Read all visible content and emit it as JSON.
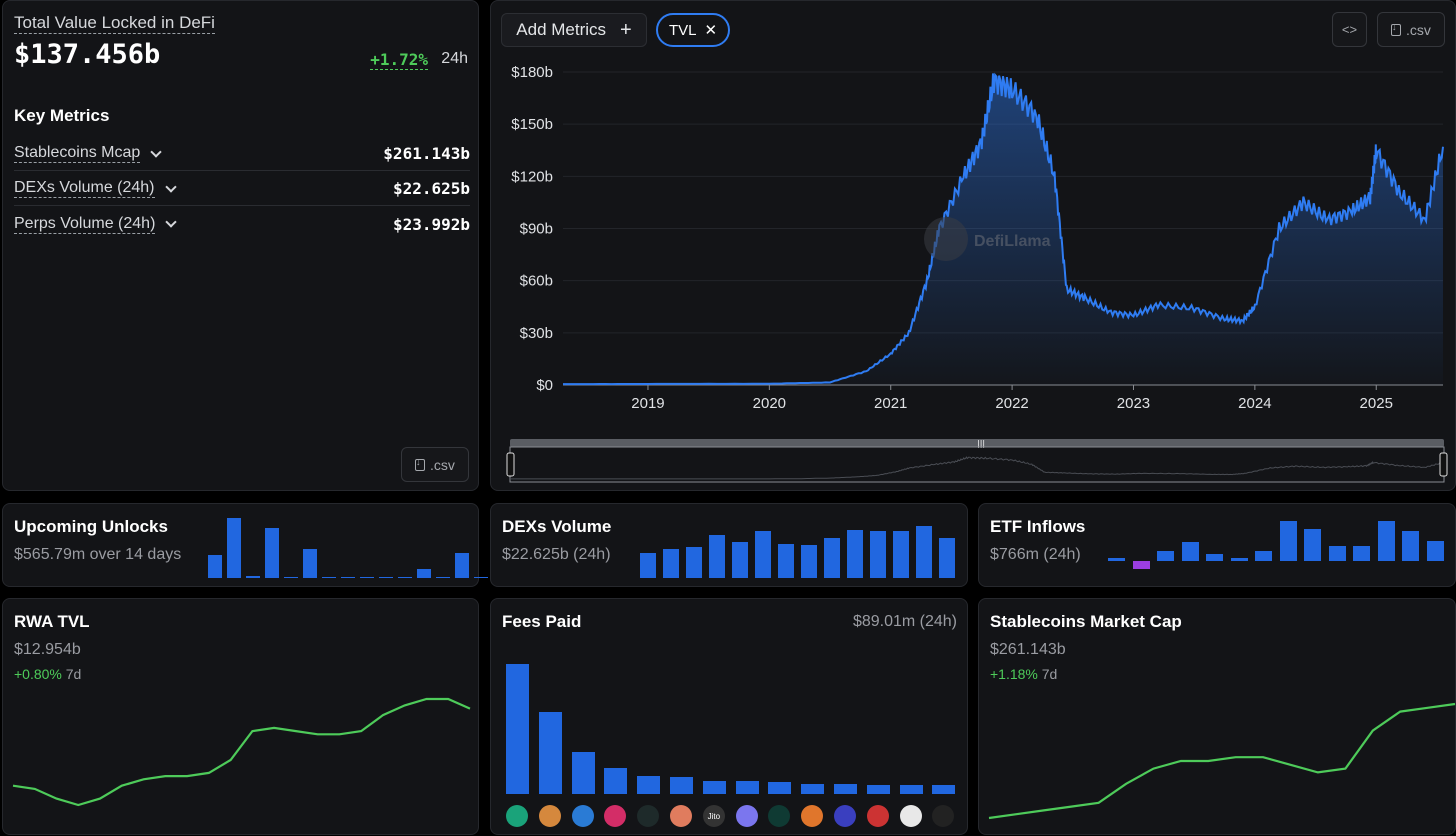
{
  "tvl": {
    "title": "Total Value Locked in DeFi",
    "value": "$137.456b",
    "change": "+1.72%",
    "period": "24h",
    "csv_label": ".csv"
  },
  "key_metrics": {
    "title": "Key Metrics",
    "items": [
      {
        "label": "Stablecoins Mcap",
        "value": "$261.143b"
      },
      {
        "label": "DEXs Volume (24h)",
        "value": "$22.625b"
      },
      {
        "label": "Perps Volume (24h)",
        "value": "$23.992b"
      }
    ]
  },
  "main_chart": {
    "add_metrics_label": "Add Metrics",
    "add_icon": "plus-icon",
    "pill_label": "TVL",
    "embed_label": "<>",
    "csv_label": ".csv",
    "watermark": "DefiLlama"
  },
  "chart_data": {
    "type": "area",
    "series": [
      {
        "name": "TVL",
        "color": "#2f7cf2"
      }
    ],
    "x": [
      "2018.3",
      "2019",
      "2020",
      "2020.5",
      "2020.8",
      "2021",
      "2021.15",
      "2021.3",
      "2021.4",
      "2021.6",
      "2021.75",
      "2021.85",
      "2022",
      "2022.2",
      "2022.35",
      "2022.45",
      "2022.6",
      "2022.8",
      "2023",
      "2023.2",
      "2023.5",
      "2023.75",
      "2023.9",
      "2024",
      "2024.2",
      "2024.4",
      "2024.6",
      "2024.8",
      "2024.95",
      "2025",
      "2025.2",
      "2025.4",
      "2025.55"
    ],
    "values": [
      0.5,
      0.6,
      0.7,
      1.5,
      8,
      18,
      30,
      60,
      90,
      120,
      140,
      175,
      170,
      155,
      120,
      55,
      50,
      42,
      40,
      46,
      44,
      38,
      37,
      45,
      90,
      105,
      95,
      100,
      108,
      135,
      110,
      95,
      137
    ],
    "title": "",
    "xlabel": "",
    "ylabel": "",
    "y_ticks": [
      "$0",
      "$30b",
      "$60b",
      "$90b",
      "$120b",
      "$150b",
      "$180b"
    ],
    "x_ticks": [
      "2019",
      "2020",
      "2021",
      "2022",
      "2023",
      "2024",
      "2025"
    ],
    "ylim": [
      0,
      180
    ]
  },
  "unlocks": {
    "title": "Upcoming Unlocks",
    "subtitle": "$565.79m over 14 days",
    "bars": [
      22,
      58,
      2,
      48,
      1,
      28,
      1,
      1,
      1,
      1,
      1,
      9,
      1,
      24,
      1
    ]
  },
  "dexs": {
    "title": "DEXs Volume",
    "subtitle": "$22.625b (24h)",
    "bars": [
      28,
      32,
      35,
      48,
      40,
      52,
      38,
      37,
      45,
      53,
      52,
      52,
      58,
      45
    ]
  },
  "etf": {
    "title": "ETF Inflows",
    "subtitle": "$766m (24h)",
    "bars": [
      3,
      -8,
      10,
      19,
      7,
      3,
      10,
      40,
      32,
      15,
      15,
      40,
      30,
      20
    ]
  },
  "rwa": {
    "title": "RWA TVL",
    "value": "$12.954b",
    "change": "+0.80%",
    "period": "7d",
    "line": [
      12.7,
      12.69,
      12.66,
      12.64,
      12.66,
      12.7,
      12.72,
      12.73,
      12.73,
      12.74,
      12.78,
      12.87,
      12.88,
      12.87,
      12.86,
      12.86,
      12.87,
      12.92,
      12.95,
      12.97,
      12.97,
      12.94
    ]
  },
  "fees": {
    "title": "Fees Paid",
    "value": "$89.01m (24h)",
    "bars": [
      100,
      63,
      32,
      20,
      14,
      13,
      10,
      10,
      9,
      8,
      8,
      7,
      7,
      7
    ],
    "icons": [
      "tether-icon",
      "pancakeswap-icon",
      "circle-icon",
      "uniswap-icon",
      "sky-icon",
      "lido-icon",
      "jito-icon",
      "phantom-icon",
      "hyperliquid-icon",
      "metamask-icon",
      "raydium-icon",
      "pump-icon",
      "pill-icon",
      "aave-icon"
    ],
    "jito_label": "Jito"
  },
  "stables": {
    "title": "Stablecoins Market Cap",
    "value": "$261.143b",
    "change": "+1.18%",
    "period": "7d",
    "line": [
      258.1,
      258.2,
      258.3,
      258.4,
      258.5,
      259.0,
      259.4,
      259.6,
      259.6,
      259.7,
      259.7,
      259.5,
      259.3,
      259.4,
      260.4,
      260.9,
      261.0,
      261.1
    ]
  },
  "accent": "#2167e0",
  "positive": "#4ecb5a",
  "negative": "#9b3ee0"
}
